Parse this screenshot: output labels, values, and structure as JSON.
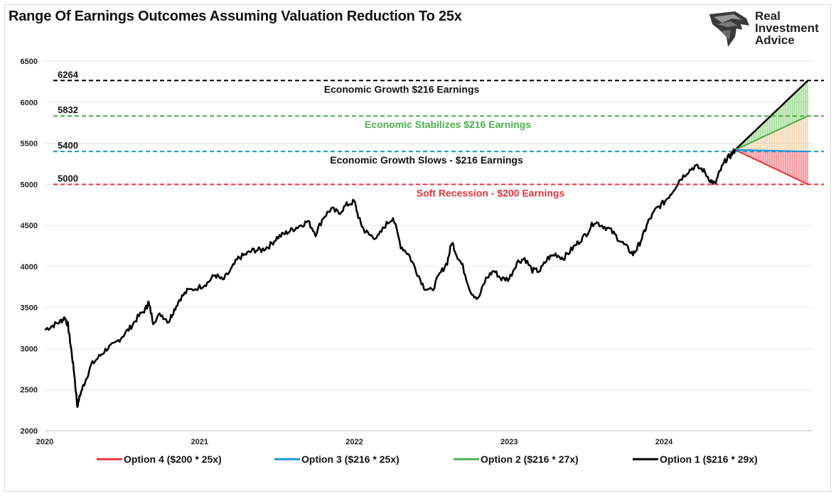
{
  "logo": {
    "icon": "eagle-head-icon",
    "brand_lines": [
      "Real",
      "Investment",
      "Advice"
    ]
  },
  "chart_data": {
    "type": "line",
    "title": "Range Of Earnings Outcomes Assuming Valuation Reduction To 25x",
    "xlabel": "",
    "ylabel": "",
    "ylim": [
      2000,
      6500
    ],
    "xlim": [
      2020.0,
      2024.96
    ],
    "y_ticks": [
      2000,
      2500,
      3000,
      3500,
      4000,
      4500,
      5000,
      5500,
      6000,
      6500
    ],
    "x_ticks": [
      {
        "label": "2020",
        "x": 2020.0
      },
      {
        "label": "2021",
        "x": 2021.0
      },
      {
        "label": "2022",
        "x": 2022.0
      },
      {
        "label": "2023",
        "x": 2023.0
      },
      {
        "label": "2024",
        "x": 2024.0
      }
    ],
    "grid": {
      "horizontal": true,
      "vertical": false
    },
    "index_series": {
      "color": "#000000",
      "points": [
        [
          2020.0,
          3230
        ],
        [
          2020.05,
          3280
        ],
        [
          2020.1,
          3330
        ],
        [
          2020.13,
          3380
        ],
        [
          2020.15,
          3280
        ],
        [
          2020.17,
          3000
        ],
        [
          2020.19,
          2700
        ],
        [
          2020.21,
          2300
        ],
        [
          2020.23,
          2450
        ],
        [
          2020.26,
          2600
        ],
        [
          2020.3,
          2800
        ],
        [
          2020.35,
          2900
        ],
        [
          2020.4,
          3000
        ],
        [
          2020.45,
          3050
        ],
        [
          2020.5,
          3150
        ],
        [
          2020.55,
          3250
        ],
        [
          2020.6,
          3380
        ],
        [
          2020.65,
          3480
        ],
        [
          2020.67,
          3560
        ],
        [
          2020.7,
          3330
        ],
        [
          2020.75,
          3420
        ],
        [
          2020.8,
          3330
        ],
        [
          2020.83,
          3450
        ],
        [
          2020.87,
          3600
        ],
        [
          2020.92,
          3700
        ],
        [
          2021.0,
          3750
        ],
        [
          2021.05,
          3800
        ],
        [
          2021.1,
          3900
        ],
        [
          2021.15,
          3830
        ],
        [
          2021.2,
          3950
        ],
        [
          2021.25,
          4100
        ],
        [
          2021.3,
          4150
        ],
        [
          2021.35,
          4200
        ],
        [
          2021.4,
          4200
        ],
        [
          2021.45,
          4250
        ],
        [
          2021.5,
          4350
        ],
        [
          2021.55,
          4400
        ],
        [
          2021.6,
          4450
        ],
        [
          2021.65,
          4500
        ],
        [
          2021.7,
          4550
        ],
        [
          2021.75,
          4400
        ],
        [
          2021.8,
          4600
        ],
        [
          2021.85,
          4700
        ],
        [
          2021.9,
          4650
        ],
        [
          2021.95,
          4750
        ],
        [
          2022.0,
          4790
        ],
        [
          2022.03,
          4580
        ],
        [
          2022.06,
          4450
        ],
        [
          2022.1,
          4380
        ],
        [
          2022.15,
          4350
        ],
        [
          2022.2,
          4500
        ],
        [
          2022.25,
          4600
        ],
        [
          2022.3,
          4250
        ],
        [
          2022.35,
          4150
        ],
        [
          2022.4,
          3950
        ],
        [
          2022.45,
          3750
        ],
        [
          2022.5,
          3700
        ],
        [
          2022.55,
          3900
        ],
        [
          2022.6,
          4050
        ],
        [
          2022.63,
          4300
        ],
        [
          2022.66,
          4150
        ],
        [
          2022.7,
          4000
        ],
        [
          2022.75,
          3700
        ],
        [
          2022.8,
          3600
        ],
        [
          2022.85,
          3850
        ],
        [
          2022.9,
          3950
        ],
        [
          2022.95,
          3850
        ],
        [
          2023.0,
          3850
        ],
        [
          2023.05,
          4050
        ],
        [
          2023.1,
          4100
        ],
        [
          2023.15,
          3950
        ],
        [
          2023.2,
          3950
        ],
        [
          2023.25,
          4100
        ],
        [
          2023.3,
          4150
        ],
        [
          2023.35,
          4100
        ],
        [
          2023.4,
          4200
        ],
        [
          2023.45,
          4300
        ],
        [
          2023.5,
          4400
        ],
        [
          2023.55,
          4550
        ],
        [
          2023.6,
          4500
        ],
        [
          2023.65,
          4450
        ],
        [
          2023.7,
          4350
        ],
        [
          2023.75,
          4250
        ],
        [
          2023.8,
          4150
        ],
        [
          2023.83,
          4230
        ],
        [
          2023.87,
          4400
        ],
        [
          2023.9,
          4550
        ],
        [
          2023.95,
          4700
        ],
        [
          2024.0,
          4780
        ],
        [
          2024.05,
          4900
        ],
        [
          2024.1,
          5050
        ],
        [
          2024.15,
          5150
        ],
        [
          2024.2,
          5220
        ],
        [
          2024.25,
          5180
        ],
        [
          2024.3,
          5050
        ],
        [
          2024.33,
          5000
        ],
        [
          2024.36,
          5150
        ],
        [
          2024.4,
          5300
        ],
        [
          2024.43,
          5350
        ],
        [
          2024.46,
          5420
        ]
      ]
    },
    "projection": {
      "start": [
        2024.46,
        5420
      ],
      "end_x": 2024.93
    },
    "levels": [
      {
        "value": 6264,
        "label": "6264",
        "color": "#000000",
        "scenario": "Economic Growth $216 Earnings",
        "scenario_color": "#111111",
        "legend": "Option 1 ($216 * 29x)"
      },
      {
        "value": 5832,
        "label": "5832",
        "color": "#4cae4c",
        "scenario": "Economic Stabilizes $216 Earnings",
        "scenario_color": "#4cae4c",
        "legend": "Option 2 ($216 * 27x)"
      },
      {
        "value": 5400,
        "label": "5400",
        "color": "#1a96d4",
        "scenario": "Economic Growth Slows - $216 Earnings",
        "scenario_color": "#111111",
        "legend": "Option 3 ($216 * 25x)"
      },
      {
        "value": 5000,
        "label": "5000",
        "color": "#e8333a",
        "scenario": "Soft Recession - $200 Earnings",
        "scenario_color": "#e8333a",
        "legend": "Option 4 ($200 * 25x)"
      }
    ],
    "legend_order": [
      "Option 4 ($200 * 25x)",
      "Option 3 ($216 * 25x)",
      "Option 2 ($216 * 27x)",
      "Option 1 ($216 * 29x)"
    ],
    "legend_placement": "bottom-center"
  }
}
